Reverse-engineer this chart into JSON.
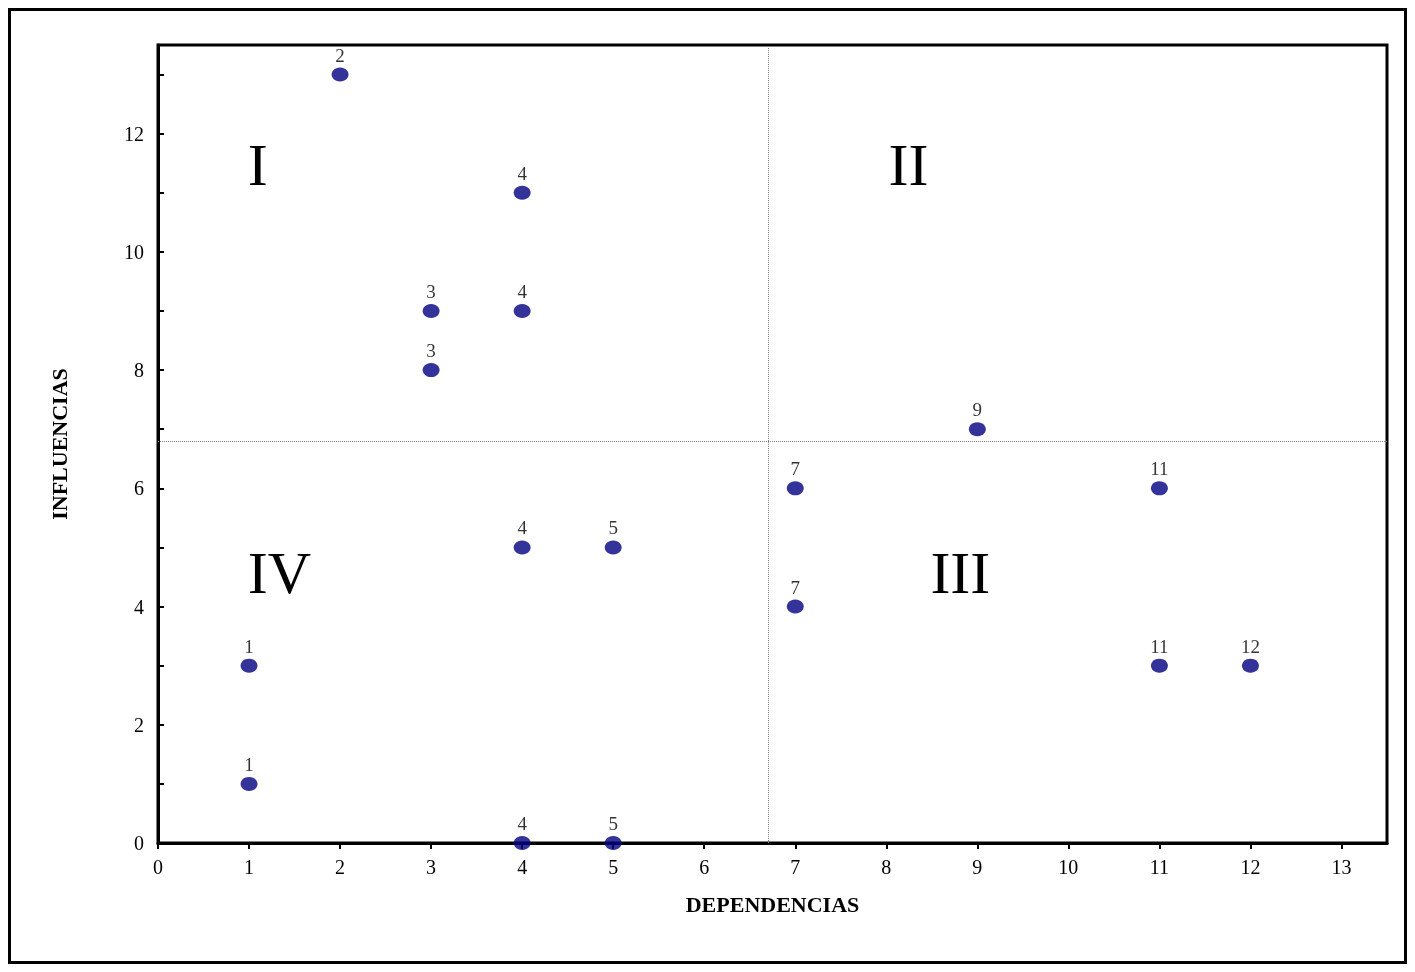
{
  "chart_data": {
    "type": "scatter",
    "xlabel": "DEPENDENCIAS",
    "ylabel": "INFLUENCIAS",
    "x": [
      2,
      4,
      3,
      4,
      3,
      9,
      7,
      11,
      4,
      5,
      7,
      1,
      11,
      12,
      1,
      4,
      5
    ],
    "values": [
      13,
      11,
      9,
      9,
      8,
      7,
      6,
      6,
      5,
      5,
      4,
      3,
      3,
      3,
      1,
      0,
      0
    ],
    "color": "#000080",
    "marker": "circle",
    "grid": false,
    "xlim": [
      0,
      13.5
    ],
    "xticks": [
      0,
      1,
      2,
      3,
      4,
      5,
      6,
      7,
      8,
      9,
      10,
      11,
      12,
      13
    ],
    "ylim": [
      0,
      13.5
    ],
    "yticks": [
      0,
      {
        "value": 1,
        "label": null
      },
      2,
      {
        "value": 3,
        "label": null
      },
      4,
      {
        "value": 5,
        "label": null
      },
      6,
      {
        "value": 7,
        "label": null
      },
      8,
      {
        "value": 9,
        "label": null
      },
      10,
      {
        "value": 11,
        "label": null
      },
      12,
      {
        "value": 13,
        "label": null
      }
    ],
    "ref_lines": [
      {
        "axis": "x",
        "value": 6.7,
        "color": "#808080",
        "line_style": "dotted"
      },
      {
        "axis": "y",
        "value": 6.8,
        "color": "#808080",
        "line_style": "dotted"
      }
    ],
    "annotations": [
      "I",
      "II",
      "III",
      "IV",
      {
        "text": "2",
        "x": 2,
        "y": 13
      },
      {
        "text": "4",
        "x": 4,
        "y": 11
      },
      {
        "text": "3",
        "x": 3,
        "y": 9
      },
      {
        "text": "4",
        "x": 4,
        "y": 9
      },
      {
        "text": "3",
        "x": 3,
        "y": 8
      },
      {
        "text": "9",
        "x": 9,
        "y": 7
      },
      {
        "text": "7",
        "x": 7,
        "y": 6
      },
      {
        "text": "11",
        "x": 11,
        "y": 6
      },
      {
        "text": "4",
        "x": 4,
        "y": 5
      },
      {
        "text": "5",
        "x": 5,
        "y": 5
      },
      {
        "text": "7",
        "x": 7,
        "y": 4
      },
      {
        "text": "1",
        "x": 1,
        "y": 3
      },
      {
        "text": "11",
        "x": 11,
        "y": 3
      },
      {
        "text": "12",
        "x": 12,
        "y": 3
      },
      {
        "text": "1",
        "x": 1,
        "y": 1
      },
      {
        "text": "4",
        "x": 4,
        "y": 0
      },
      {
        "text": "5",
        "x": 5,
        "y": 0
      }
    ]
  }
}
